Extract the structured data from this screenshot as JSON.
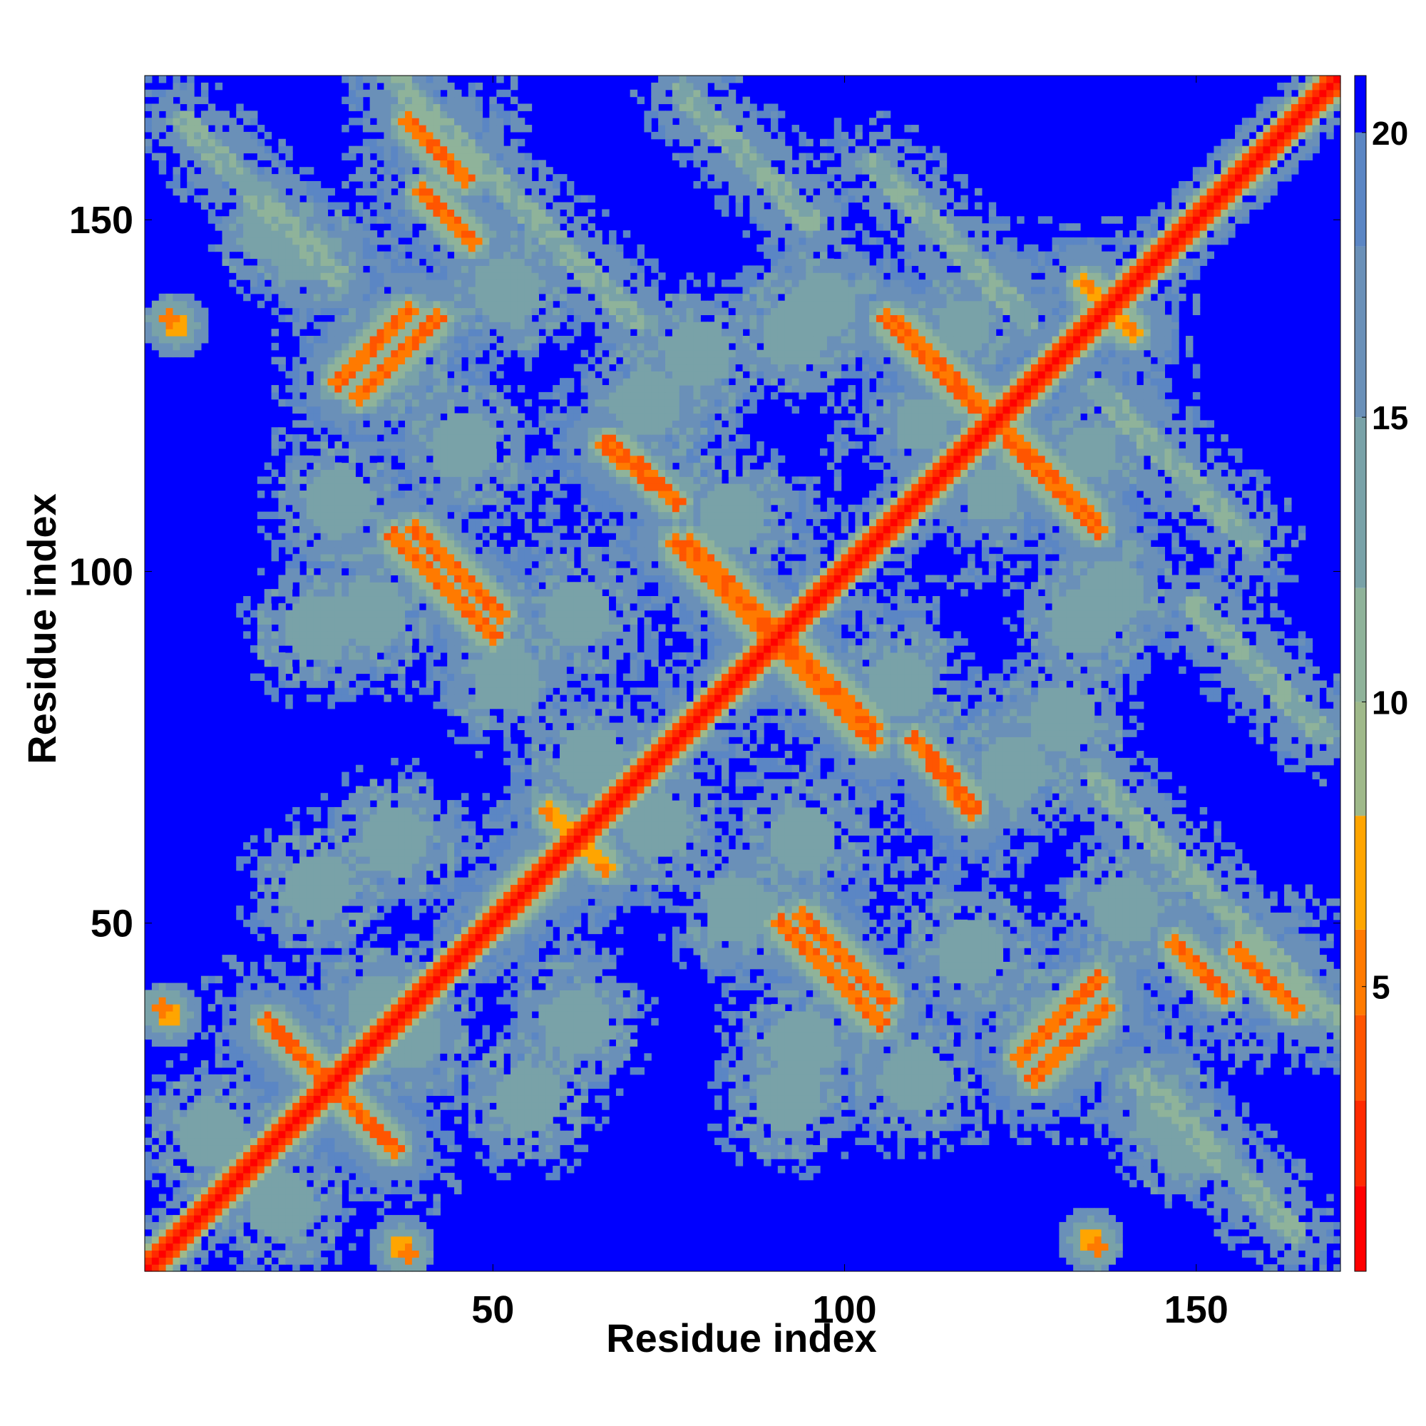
{
  "chart_data": {
    "type": "heatmap",
    "title": "",
    "xlabel": "Residue index",
    "ylabel": "Residue index",
    "n_residues": 170,
    "xlim": [
      1,
      170
    ],
    "ylim": [
      1,
      170
    ],
    "x_ticks": [
      50,
      100,
      150
    ],
    "y_ticks": [
      50,
      100,
      150
    ],
    "colorbar": {
      "range": [
        0,
        21
      ],
      "ticks": [
        5,
        10,
        15,
        20
      ],
      "levels": [
        {
          "max": 1.5,
          "color": "#ff0000"
        },
        {
          "max": 3,
          "color": "#ff2a00"
        },
        {
          "max": 4.5,
          "color": "#ff5500"
        },
        {
          "max": 6,
          "color": "#ff7a00"
        },
        {
          "max": 8,
          "color": "#ffa500"
        },
        {
          "max": 10,
          "color": "#9fb98a"
        },
        {
          "max": 12,
          "color": "#8fb39a"
        },
        {
          "max": 15,
          "color": "#79a2a8"
        },
        {
          "max": 18,
          "color": "#6a90b8"
        },
        {
          "max": 20,
          "color": "#5b86c4"
        },
        {
          "max": 21,
          "color": "#0000ff"
        }
      ]
    },
    "background_value": 21,
    "diagonal_band_width": 3,
    "contact_segments": [
      {
        "from": [
          6,
          164
        ],
        "to": [
          28,
          142
        ],
        "value": 13
      },
      {
        "from": [
          36,
          170
        ],
        "to": [
          70,
          136
        ],
        "value": 13
      },
      {
        "from": [
          77,
          168
        ],
        "to": [
          95,
          150
        ],
        "value": 13
      },
      {
        "from": [
          104,
          158
        ],
        "to": [
          126,
          136
        ],
        "value": 13
      },
      {
        "from": [
          25,
          29
        ],
        "to": [
          34,
          20
        ],
        "value": 6
      },
      {
        "from": [
          18,
          36
        ],
        "to": [
          28,
          26
        ],
        "value": 6
      },
      {
        "from": [
          38,
          164
        ],
        "to": [
          46,
          156
        ],
        "value": 6
      },
      {
        "from": [
          28,
          127
        ],
        "to": [
          38,
          137
        ],
        "value": 6
      },
      {
        "from": [
          36,
          105
        ],
        "to": [
          50,
          91
        ],
        "value": 6
      },
      {
        "from": [
          67,
          118
        ],
        "to": [
          76,
          110
        ],
        "value": 6
      },
      {
        "from": [
          78,
          104
        ],
        "to": [
          92,
          90
        ],
        "value": 6
      },
      {
        "from": [
          92,
          88
        ],
        "to": [
          104,
          76
        ],
        "value": 6
      },
      {
        "from": [
          108,
          135
        ],
        "to": [
          120,
          123
        ],
        "value": 6
      },
      {
        "from": [
          124,
          118
        ],
        "to": [
          136,
          106
        ],
        "value": 6
      },
      {
        "from": [
          112,
          74
        ],
        "to": [
          118,
          66
        ],
        "value": 6
      },
      {
        "from": [
          94,
          51
        ],
        "to": [
          106,
          39
        ],
        "value": 6
      },
      {
        "from": [
          125,
          31
        ],
        "to": [
          136,
          42
        ],
        "value": 6
      },
      {
        "from": [
          147,
          47
        ],
        "to": [
          154,
          40
        ],
        "value": 6
      },
      {
        "from": [
          51,
          52
        ],
        "to": [
          57,
          58
        ],
        "value": 7
      },
      {
        "from": [
          58,
          66
        ],
        "to": [
          63,
          61
        ],
        "value": 7
      },
      {
        "from": [
          134,
          141
        ],
        "to": [
          138,
          137
        ],
        "value": 7
      }
    ],
    "contact_blobs": [
      {
        "center": [
          18,
          148
        ],
        "size": 5,
        "value": 12
      },
      {
        "center": [
          35,
          130
        ],
        "size": 6,
        "value": 12
      },
      {
        "center": [
          46,
          118
        ],
        "size": 6,
        "value": 12
      },
      {
        "center": [
          72,
          124
        ],
        "size": 6,
        "value": 12
      },
      {
        "center": [
          93,
          134
        ],
        "size": 6,
        "value": 12
      },
      {
        "center": [
          117,
          135
        ],
        "size": 5,
        "value": 12
      },
      {
        "center": [
          121,
          111
        ],
        "size": 5,
        "value": 12
      },
      {
        "center": [
          138,
          97
        ],
        "size": 6,
        "value": 12
      },
      {
        "center": [
          33,
          94
        ],
        "size": 6,
        "value": 12
      },
      {
        "center": [
          62,
          94
        ],
        "size": 6,
        "value": 12
      },
      {
        "center": [
          64,
          73
        ],
        "size": 6,
        "value": 12
      },
      {
        "center": [
          108,
          84
        ],
        "size": 6,
        "value": 12
      },
      {
        "center": [
          131,
          79
        ],
        "size": 6,
        "value": 12
      },
      {
        "center": [
          25,
          55
        ],
        "size": 6,
        "value": 12
      },
      {
        "center": [
          38,
          34
        ],
        "size": 6,
        "value": 12
      },
      {
        "center": [
          62,
          36
        ],
        "size": 6,
        "value": 12
      },
      {
        "center": [
          85,
          52
        ],
        "size": 6,
        "value": 12
      },
      {
        "center": [
          92,
          25
        ],
        "size": 6,
        "value": 12
      },
      {
        "center": [
          110,
          28
        ],
        "size": 6,
        "value": 12
      },
      {
        "center": [
          140,
          52
        ],
        "size": 6,
        "value": 12
      },
      {
        "center": [
          145,
          24
        ],
        "size": 5,
        "value": 12
      },
      {
        "center": [
          10,
          20
        ],
        "size": 6,
        "value": 12
      },
      {
        "center": [
          135,
          5
        ],
        "size": 3,
        "value": 7
      },
      {
        "center": [
          37,
          4
        ],
        "size": 3,
        "value": 7
      },
      {
        "center": [
          4,
          136
        ],
        "size": 2,
        "value": 6
      },
      {
        "center": [
          3,
          38
        ],
        "size": 2,
        "value": 6
      }
    ]
  }
}
